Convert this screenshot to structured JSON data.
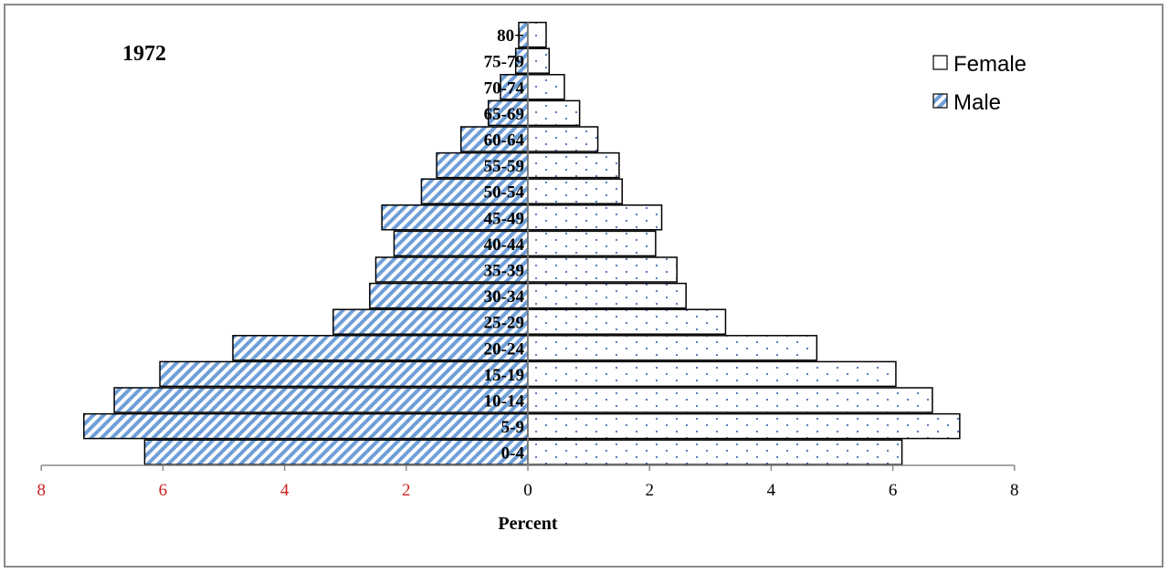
{
  "chart_data": {
    "type": "bar",
    "orientation": "horizontal",
    "subtype": "population-pyramid",
    "title": "1972",
    "xlabel": "Percent",
    "ylabel": "",
    "xlim": [
      -8,
      8
    ],
    "x_ticks": [
      {
        "value": -8,
        "label": "8"
      },
      {
        "value": -6,
        "label": "6"
      },
      {
        "value": -4,
        "label": "4"
      },
      {
        "value": -2,
        "label": "2"
      },
      {
        "value": 0,
        "label": "0"
      },
      {
        "value": 2,
        "label": "2"
      },
      {
        "value": 4,
        "label": "4"
      },
      {
        "value": 6,
        "label": "6"
      },
      {
        "value": 8,
        "label": "8"
      }
    ],
    "categories": [
      "0-4",
      "5-9",
      "10-14",
      "15-19",
      "20-24",
      "25-29",
      "30-34",
      "35-39",
      "40-44",
      "45-49",
      "50-54",
      "55-59",
      "60-64",
      "65-69",
      "70-74",
      "75-79",
      "80+"
    ],
    "series": [
      {
        "name": "Female",
        "side": "right",
        "pattern": "dots",
        "values": [
          6.15,
          7.1,
          6.65,
          6.05,
          4.75,
          3.25,
          2.6,
          2.45,
          2.1,
          2.2,
          1.55,
          1.5,
          1.15,
          0.85,
          0.6,
          0.35,
          0.3
        ]
      },
      {
        "name": "Male",
        "side": "left",
        "pattern": "diagonal-stripes",
        "values": [
          6.3,
          7.3,
          6.8,
          6.05,
          4.85,
          3.2,
          2.6,
          2.5,
          2.2,
          2.4,
          1.75,
          1.5,
          1.1,
          0.65,
          0.45,
          0.2,
          0.15
        ]
      }
    ],
    "legend": {
      "position": "top-right",
      "entries": [
        "Female",
        "Male"
      ]
    },
    "grid": false,
    "colors": {
      "male_stripe": "#6f9fd8",
      "female_dot": "#4a6fb5",
      "negative_tick_label": "#cc1f1f",
      "positive_tick_label": "#000000",
      "bar_outline": "#000000",
      "frame": "#8a8a8a"
    }
  }
}
